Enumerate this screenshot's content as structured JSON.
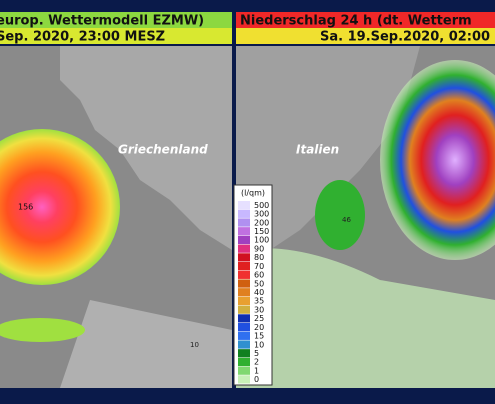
{
  "left_panel": {
    "header_line1": "europ. Wettermodell EZMW)",
    "header_line2": "Sep. 2020, 23:00 MESZ",
    "place_label": "Griechenland",
    "storm_label": "156",
    "small_label": "10"
  },
  "right_panel": {
    "header_line1": "Niederschlag 24 h (dt. Wetterm",
    "header_line2": "Sa. 19.Sep.2020, 02:00",
    "place_label": "Italien",
    "small_label": "46"
  },
  "legend": {
    "title": "(l/qm)",
    "items": [
      {
        "label": "500",
        "color": "#e6e0ff"
      },
      {
        "label": "300",
        "color": "#c8b8ff"
      },
      {
        "label": "200",
        "color": "#b090f0"
      },
      {
        "label": "150",
        "color": "#c070e0"
      },
      {
        "label": "100",
        "color": "#a040c0"
      },
      {
        "label": "90",
        "color": "#e03080"
      },
      {
        "label": "80",
        "color": "#d01020"
      },
      {
        "label": "70",
        "color": "#e02020"
      },
      {
        "label": "60",
        "color": "#f03030"
      },
      {
        "label": "50",
        "color": "#d06010"
      },
      {
        "label": "40",
        "color": "#e08020"
      },
      {
        "label": "35",
        "color": "#e8a030"
      },
      {
        "label": "30",
        "color": "#d0b040"
      },
      {
        "label": "25",
        "color": "#1030b0"
      },
      {
        "label": "20",
        "color": "#2050e0"
      },
      {
        "label": "15",
        "color": "#3070f0"
      },
      {
        "label": "10",
        "color": "#3090d0"
      },
      {
        "label": "5",
        "color": "#108020"
      },
      {
        "label": "2",
        "color": "#30b030"
      },
      {
        "label": "1",
        "color": "#80d870"
      },
      {
        "label": "0",
        "color": "#c8f0b8"
      }
    ]
  }
}
